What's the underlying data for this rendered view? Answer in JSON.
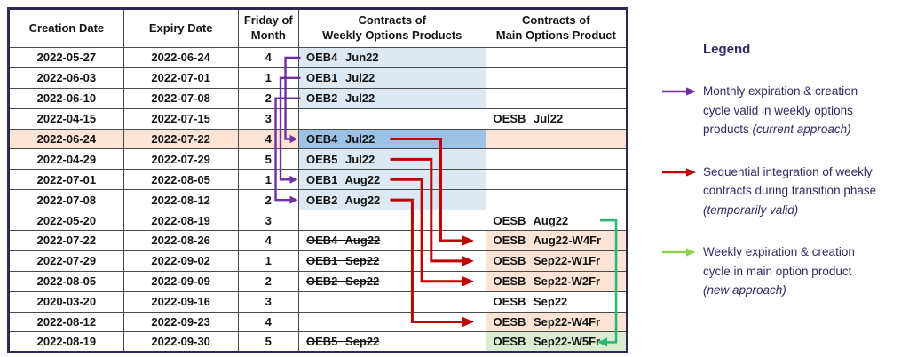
{
  "colors": {
    "peach": "#FBE4D5",
    "blue_light": "#DCE9F5",
    "blue_medium": "#9CC2E5",
    "green_light": "#DAEBD0",
    "purple_arrow": "#7030A0",
    "red_arrow": "#C00000",
    "green_arrow_table": "#29B873",
    "green_arrow_legend": "#92D050",
    "navy_text": "#2F2B66",
    "table_border": "#2B2852",
    "grid_line": "#4a4a4a"
  },
  "table": {
    "columns": [
      "Creation Date",
      "Expiry Date",
      "Friday of\nMonth",
      "Contracts of\nWeekly Options Products",
      "Contracts of\nMain Options Product"
    ],
    "rows": [
      {
        "creation": "2022-05-27",
        "expiry": "2022-06-24",
        "friday": "4",
        "row_bg": "none",
        "weekly": {
          "text": "OEB4 Jun22",
          "bg": "blue",
          "strike": false
        },
        "main": {
          "text": "",
          "bg": "none"
        }
      },
      {
        "creation": "2022-06-03",
        "expiry": "2022-07-01",
        "friday": "1",
        "row_bg": "none",
        "weekly": {
          "text": "OEB1 Jul22",
          "bg": "blue",
          "strike": false
        },
        "main": {
          "text": "",
          "bg": "none"
        }
      },
      {
        "creation": "2022-06-10",
        "expiry": "2022-07-08",
        "friday": "2",
        "row_bg": "none",
        "weekly": {
          "text": "OEB2 Jul22",
          "bg": "blue",
          "strike": false
        },
        "main": {
          "text": "",
          "bg": "none"
        }
      },
      {
        "creation": "2022-04-15",
        "expiry": "2022-07-15",
        "friday": "3",
        "row_bg": "none",
        "weekly": {
          "text": "",
          "bg": "none",
          "strike": false
        },
        "main": {
          "text": "OESB Jul22",
          "bg": "none"
        }
      },
      {
        "creation": "2022-06-24",
        "expiry": "2022-07-22",
        "friday": "4",
        "row_bg": "peach",
        "weekly": {
          "text": "OEB4 Jul22",
          "bg": "blue_dark",
          "strike": false
        },
        "main": {
          "text": "",
          "bg": "peach"
        }
      },
      {
        "creation": "2022-04-29",
        "expiry": "2022-07-29",
        "friday": "5",
        "row_bg": "none",
        "weekly": {
          "text": "OEB5 Jul22",
          "bg": "blue",
          "strike": false
        },
        "main": {
          "text": "",
          "bg": "none"
        }
      },
      {
        "creation": "2022-07-01",
        "expiry": "2022-08-05",
        "friday": "1",
        "row_bg": "none",
        "weekly": {
          "text": "OEB1 Aug22",
          "bg": "blue",
          "strike": false
        },
        "main": {
          "text": "",
          "bg": "none"
        }
      },
      {
        "creation": "2022-07-08",
        "expiry": "2022-08-12",
        "friday": "2",
        "row_bg": "none",
        "weekly": {
          "text": "OEB2 Aug22",
          "bg": "blue",
          "strike": false
        },
        "main": {
          "text": "",
          "bg": "none"
        }
      },
      {
        "creation": "2022-05-20",
        "expiry": "2022-08-19",
        "friday": "3",
        "row_bg": "none",
        "weekly": {
          "text": "",
          "bg": "none",
          "strike": false
        },
        "main": {
          "text": "OESB Aug22",
          "bg": "none"
        }
      },
      {
        "creation": "2022-07-22",
        "expiry": "2022-08-26",
        "friday": "4",
        "row_bg": "none",
        "weekly": {
          "text": "OEB4 Aug22",
          "bg": "none",
          "strike": true
        },
        "main": {
          "text": "OESB Aug22-W4Fr",
          "bg": "peach"
        }
      },
      {
        "creation": "2022-07-29",
        "expiry": "2022-09-02",
        "friday": "1",
        "row_bg": "none",
        "weekly": {
          "text": "OEB1 Sep22",
          "bg": "none",
          "strike": true
        },
        "main": {
          "text": "OESB Sep22-W1Fr",
          "bg": "peach"
        }
      },
      {
        "creation": "2022-08-05",
        "expiry": "2022-09-09",
        "friday": "2",
        "row_bg": "none",
        "weekly": {
          "text": "OEB2 Sep22",
          "bg": "none",
          "strike": true
        },
        "main": {
          "text": "OESB Sep22-W2Fr",
          "bg": "peach"
        }
      },
      {
        "creation": "2020-03-20",
        "expiry": "2022-09-16",
        "friday": "3",
        "row_bg": "none",
        "weekly": {
          "text": "",
          "bg": "none",
          "strike": false
        },
        "main": {
          "text": "OESB Sep22",
          "bg": "none"
        }
      },
      {
        "creation": "2022-08-12",
        "expiry": "2022-09-23",
        "friday": "4",
        "row_bg": "none",
        "weekly": {
          "text": "",
          "bg": "none",
          "strike": false
        },
        "main": {
          "text": "OESB Sep22-W4Fr",
          "bg": "peach"
        }
      },
      {
        "creation": "2022-08-19",
        "expiry": "2022-09-30",
        "friday": "5",
        "row_bg": "none",
        "weekly": {
          "text": "OEB5 Sep22",
          "bg": "none",
          "strike": true
        },
        "main": {
          "text": "OESB Sep22-W5Fr",
          "bg": "green"
        }
      }
    ]
  },
  "arrows": {
    "purple": [
      {
        "from_row": 1,
        "to_row": 5
      },
      {
        "from_row": 2,
        "to_row": 7
      },
      {
        "from_row": 3,
        "to_row": 8
      }
    ],
    "red": [
      {
        "from_row": 5,
        "to_row": 10
      },
      {
        "from_row": 6,
        "to_row": 11
      },
      {
        "from_row": 7,
        "to_row": 12
      },
      {
        "from_row": 8,
        "to_row": 14
      }
    ],
    "green": [
      {
        "from_row": 9,
        "to_row": 15
      }
    ]
  },
  "legend": {
    "title": "Legend",
    "items": [
      {
        "arrow": "purple",
        "lines": [
          {
            "text": "Monthly expiration & creation",
            "italic": ""
          },
          {
            "text": "cycle valid in weekly options",
            "italic": ""
          },
          {
            "text": "products ",
            "italic": "(current approach)"
          }
        ]
      },
      {
        "arrow": "red",
        "lines": [
          {
            "text": "Sequential integration of weekly",
            "italic": ""
          },
          {
            "text": "contracts during transition phase",
            "italic": ""
          },
          {
            "text": "",
            "italic": "(temporarily valid)"
          }
        ]
      },
      {
        "arrow": "green_legend",
        "lines": [
          {
            "text": "Weekly expiration & creation",
            "italic": ""
          },
          {
            "text": "cycle in main option product",
            "italic": ""
          },
          {
            "text": "",
            "italic": "(new approach)"
          }
        ]
      }
    ]
  }
}
